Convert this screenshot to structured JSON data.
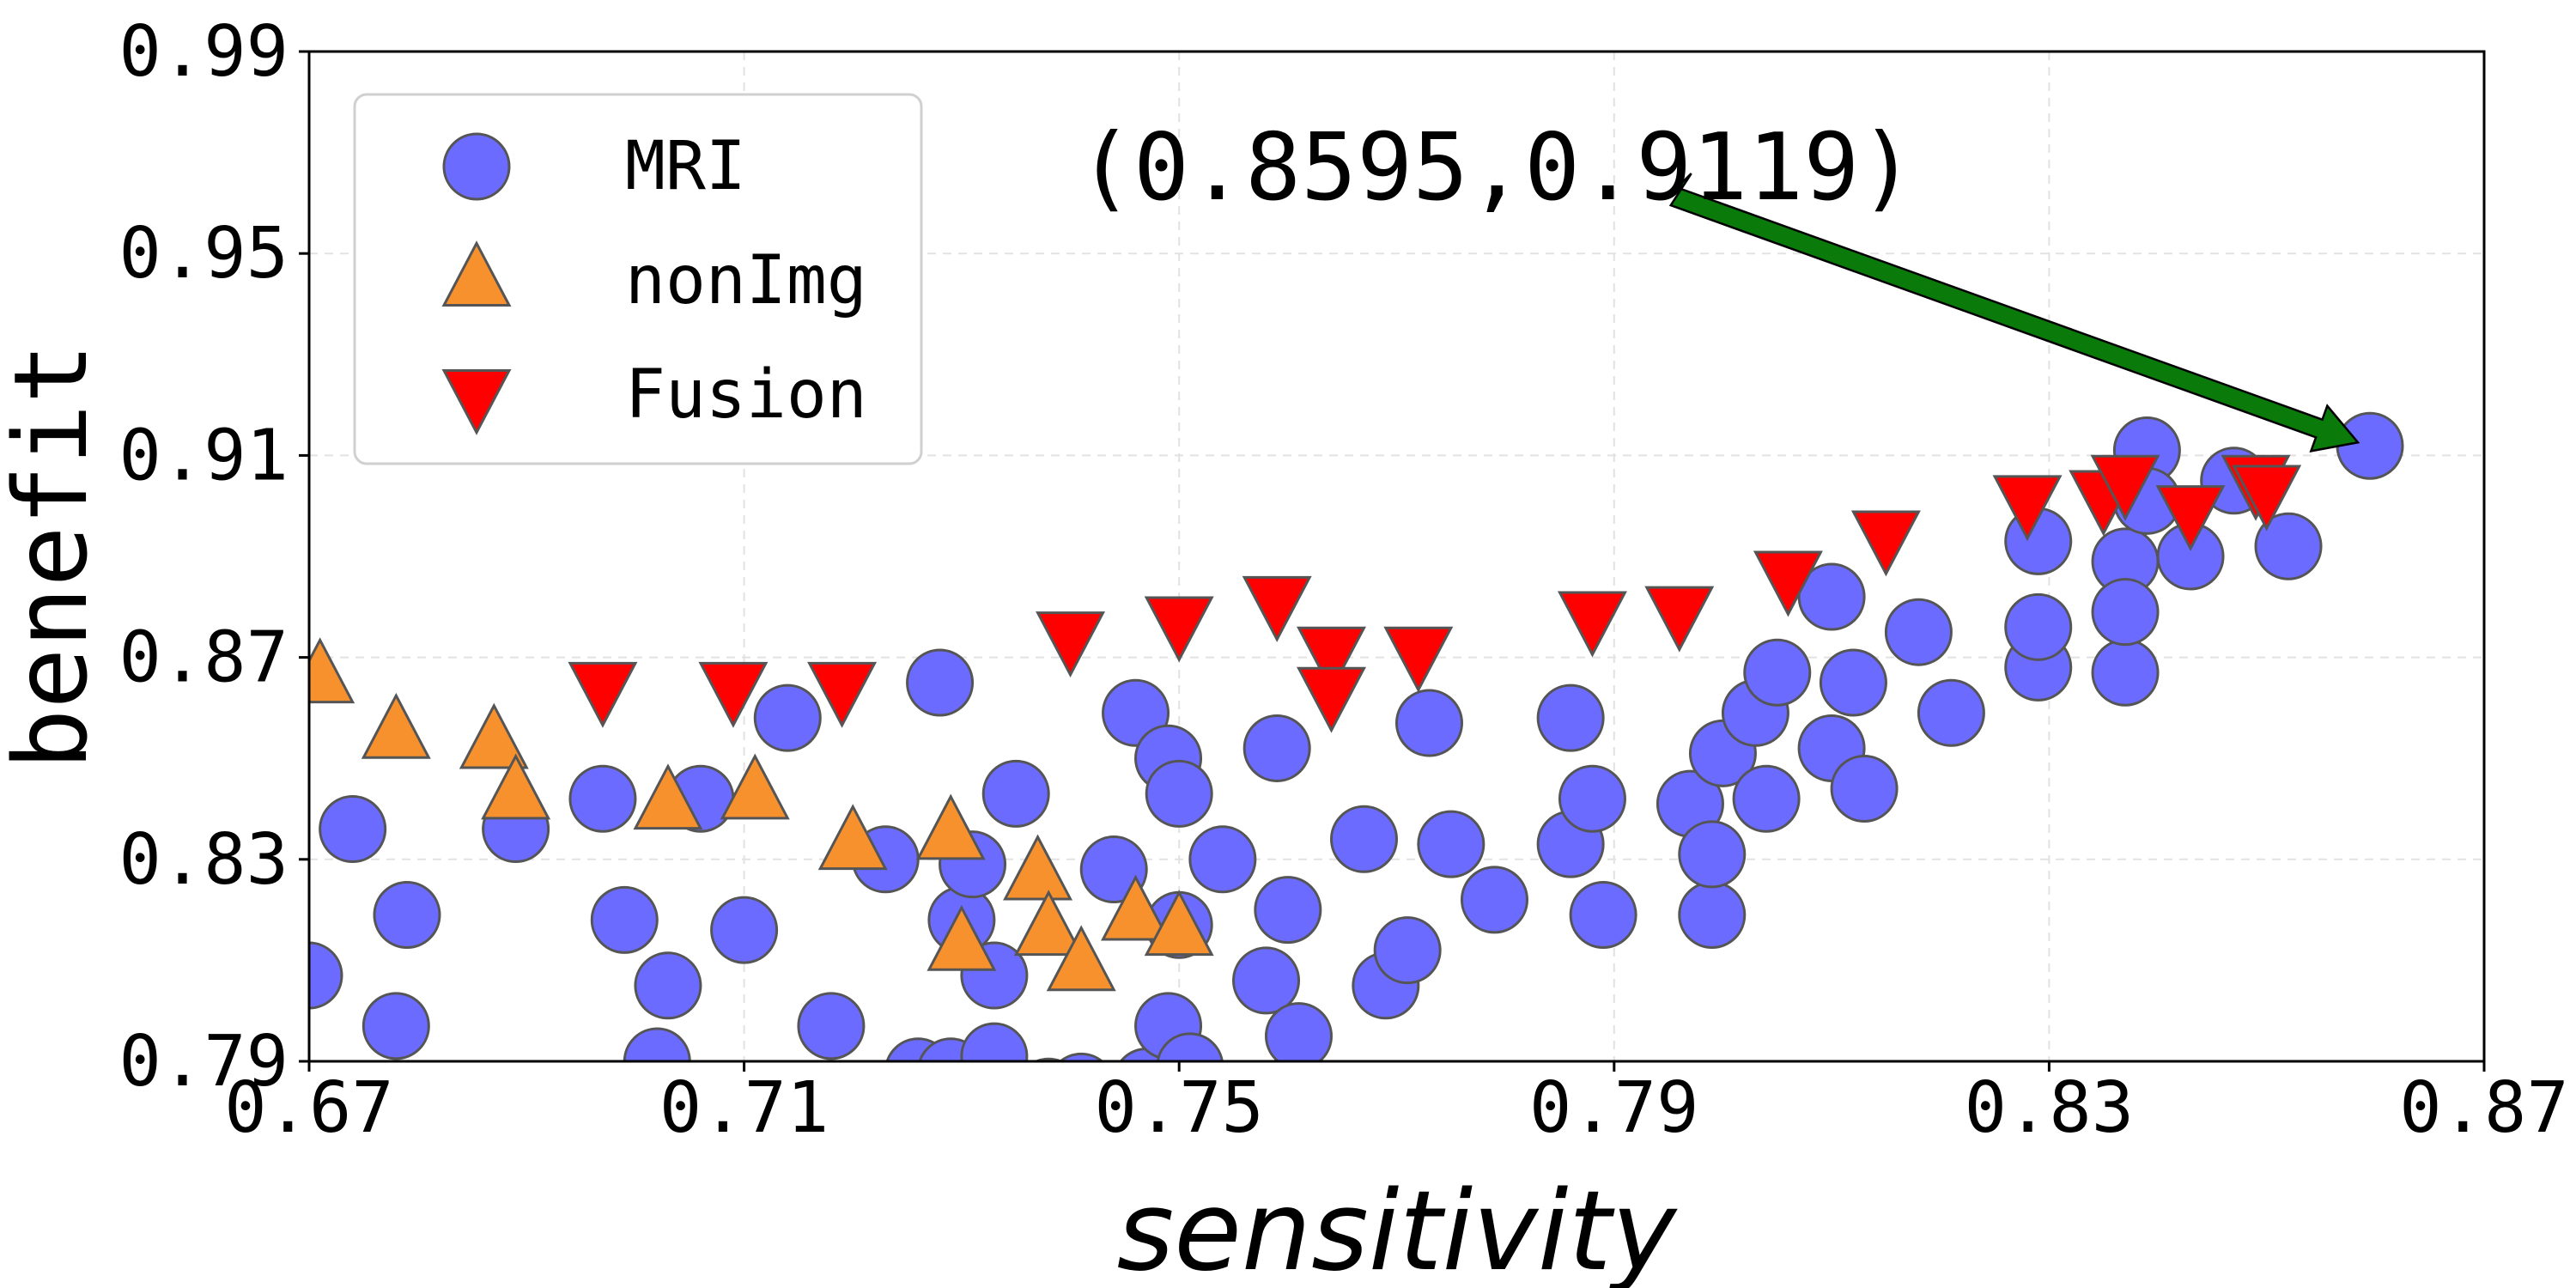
{
  "chart_data": {
    "type": "scatter",
    "xlabel": "sensitivity",
    "ylabel": "benefit",
    "xlim": [
      0.67,
      0.87
    ],
    "ylim": [
      0.79,
      0.99
    ],
    "xticks": [
      "0.67",
      "0.71",
      "0.75",
      "0.79",
      "0.83",
      "0.87"
    ],
    "yticks": [
      "0.79",
      "0.83",
      "0.87",
      "0.91",
      "0.95",
      "0.99"
    ],
    "grid": true,
    "legend_position": "upper-left",
    "annotation": {
      "text": "(0.8595,0.9119)",
      "point": [
        0.8595,
        0.9119
      ],
      "text_anchor": [
        0.7955,
        0.9613
      ],
      "arrow_color": "#0a7a0a"
    },
    "series": [
      {
        "name": "MRI",
        "marker": "circle",
        "color": "#6b6bff",
        "edge": "#555555",
        "points": [
          [
            0.67,
            0.807
          ],
          [
            0.674,
            0.836
          ],
          [
            0.679,
            0.819
          ],
          [
            0.678,
            0.797
          ],
          [
            0.689,
            0.836
          ],
          [
            0.697,
            0.842
          ],
          [
            0.699,
            0.818
          ],
          [
            0.702,
            0.79
          ],
          [
            0.703,
            0.805
          ],
          [
            0.706,
            0.842
          ],
          [
            0.71,
            0.816
          ],
          [
            0.714,
            0.858
          ],
          [
            0.718,
            0.797
          ],
          [
            0.723,
            0.83
          ],
          [
            0.726,
            0.788
          ],
          [
            0.728,
            0.865
          ],
          [
            0.729,
            0.788
          ],
          [
            0.73,
            0.818
          ],
          [
            0.731,
            0.829
          ],
          [
            0.733,
            0.807
          ],
          [
            0.733,
            0.791
          ],
          [
            0.735,
            0.843
          ],
          [
            0.738,
            0.784
          ],
          [
            0.741,
            0.785
          ],
          [
            0.744,
            0.828
          ],
          [
            0.746,
            0.859
          ],
          [
            0.747,
            0.786
          ],
          [
            0.749,
            0.85
          ],
          [
            0.749,
            0.797
          ],
          [
            0.75,
            0.817
          ],
          [
            0.75,
            0.843
          ],
          [
            0.751,
            0.789
          ],
          [
            0.754,
            0.83
          ],
          [
            0.758,
            0.806
          ],
          [
            0.759,
            0.852
          ],
          [
            0.76,
            0.82
          ],
          [
            0.761,
            0.795
          ],
          [
            0.767,
            0.834
          ],
          [
            0.769,
            0.805
          ],
          [
            0.771,
            0.812
          ],
          [
            0.773,
            0.857
          ],
          [
            0.775,
            0.833
          ],
          [
            0.779,
            0.822
          ],
          [
            0.786,
            0.833
          ],
          [
            0.786,
            0.858
          ],
          [
            0.788,
            0.842
          ],
          [
            0.789,
            0.819
          ],
          [
            0.797,
            0.841
          ],
          [
            0.799,
            0.819
          ],
          [
            0.799,
            0.831
          ],
          [
            0.8,
            0.851
          ],
          [
            0.803,
            0.859
          ],
          [
            0.804,
            0.842
          ],
          [
            0.805,
            0.867
          ],
          [
            0.81,
            0.852
          ],
          [
            0.81,
            0.882
          ],
          [
            0.812,
            0.865
          ],
          [
            0.813,
            0.844
          ],
          [
            0.818,
            0.875
          ],
          [
            0.821,
            0.859
          ],
          [
            0.829,
            0.868
          ],
          [
            0.829,
            0.893
          ],
          [
            0.829,
            0.876
          ],
          [
            0.837,
            0.889
          ],
          [
            0.837,
            0.867
          ],
          [
            0.837,
            0.879
          ],
          [
            0.839,
            0.911
          ],
          [
            0.839,
            0.901
          ],
          [
            0.843,
            0.89
          ],
          [
            0.847,
            0.905
          ],
          [
            0.852,
            0.892
          ],
          [
            0.8595,
            0.9119
          ]
        ]
      },
      {
        "name": "nonImg",
        "marker": "triangle-up",
        "color": "#f7912e",
        "edge": "#555555",
        "points": [
          [
            0.671,
            0.866
          ],
          [
            0.678,
            0.855
          ],
          [
            0.687,
            0.853
          ],
          [
            0.689,
            0.843
          ],
          [
            0.703,
            0.841
          ],
          [
            0.711,
            0.843
          ],
          [
            0.72,
            0.833
          ],
          [
            0.729,
            0.835
          ],
          [
            0.73,
            0.813
          ],
          [
            0.737,
            0.827
          ],
          [
            0.738,
            0.816
          ],
          [
            0.741,
            0.809
          ],
          [
            0.746,
            0.819
          ],
          [
            0.75,
            0.816
          ]
        ]
      },
      {
        "name": "Fusion",
        "marker": "triangle-down",
        "color": "#ff0000",
        "edge": "#555555",
        "points": [
          [
            0.697,
            0.864
          ],
          [
            0.709,
            0.864
          ],
          [
            0.719,
            0.864
          ],
          [
            0.74,
            0.874
          ],
          [
            0.75,
            0.877
          ],
          [
            0.759,
            0.881
          ],
          [
            0.764,
            0.871
          ],
          [
            0.764,
            0.863
          ],
          [
            0.772,
            0.871
          ],
          [
            0.788,
            0.878
          ],
          [
            0.796,
            0.879
          ],
          [
            0.806,
            0.886
          ],
          [
            0.815,
            0.894
          ],
          [
            0.828,
            0.901
          ],
          [
            0.835,
            0.902
          ],
          [
            0.837,
            0.905
          ],
          [
            0.843,
            0.899
          ],
          [
            0.849,
            0.905
          ],
          [
            0.85,
            0.903
          ]
        ]
      }
    ]
  }
}
